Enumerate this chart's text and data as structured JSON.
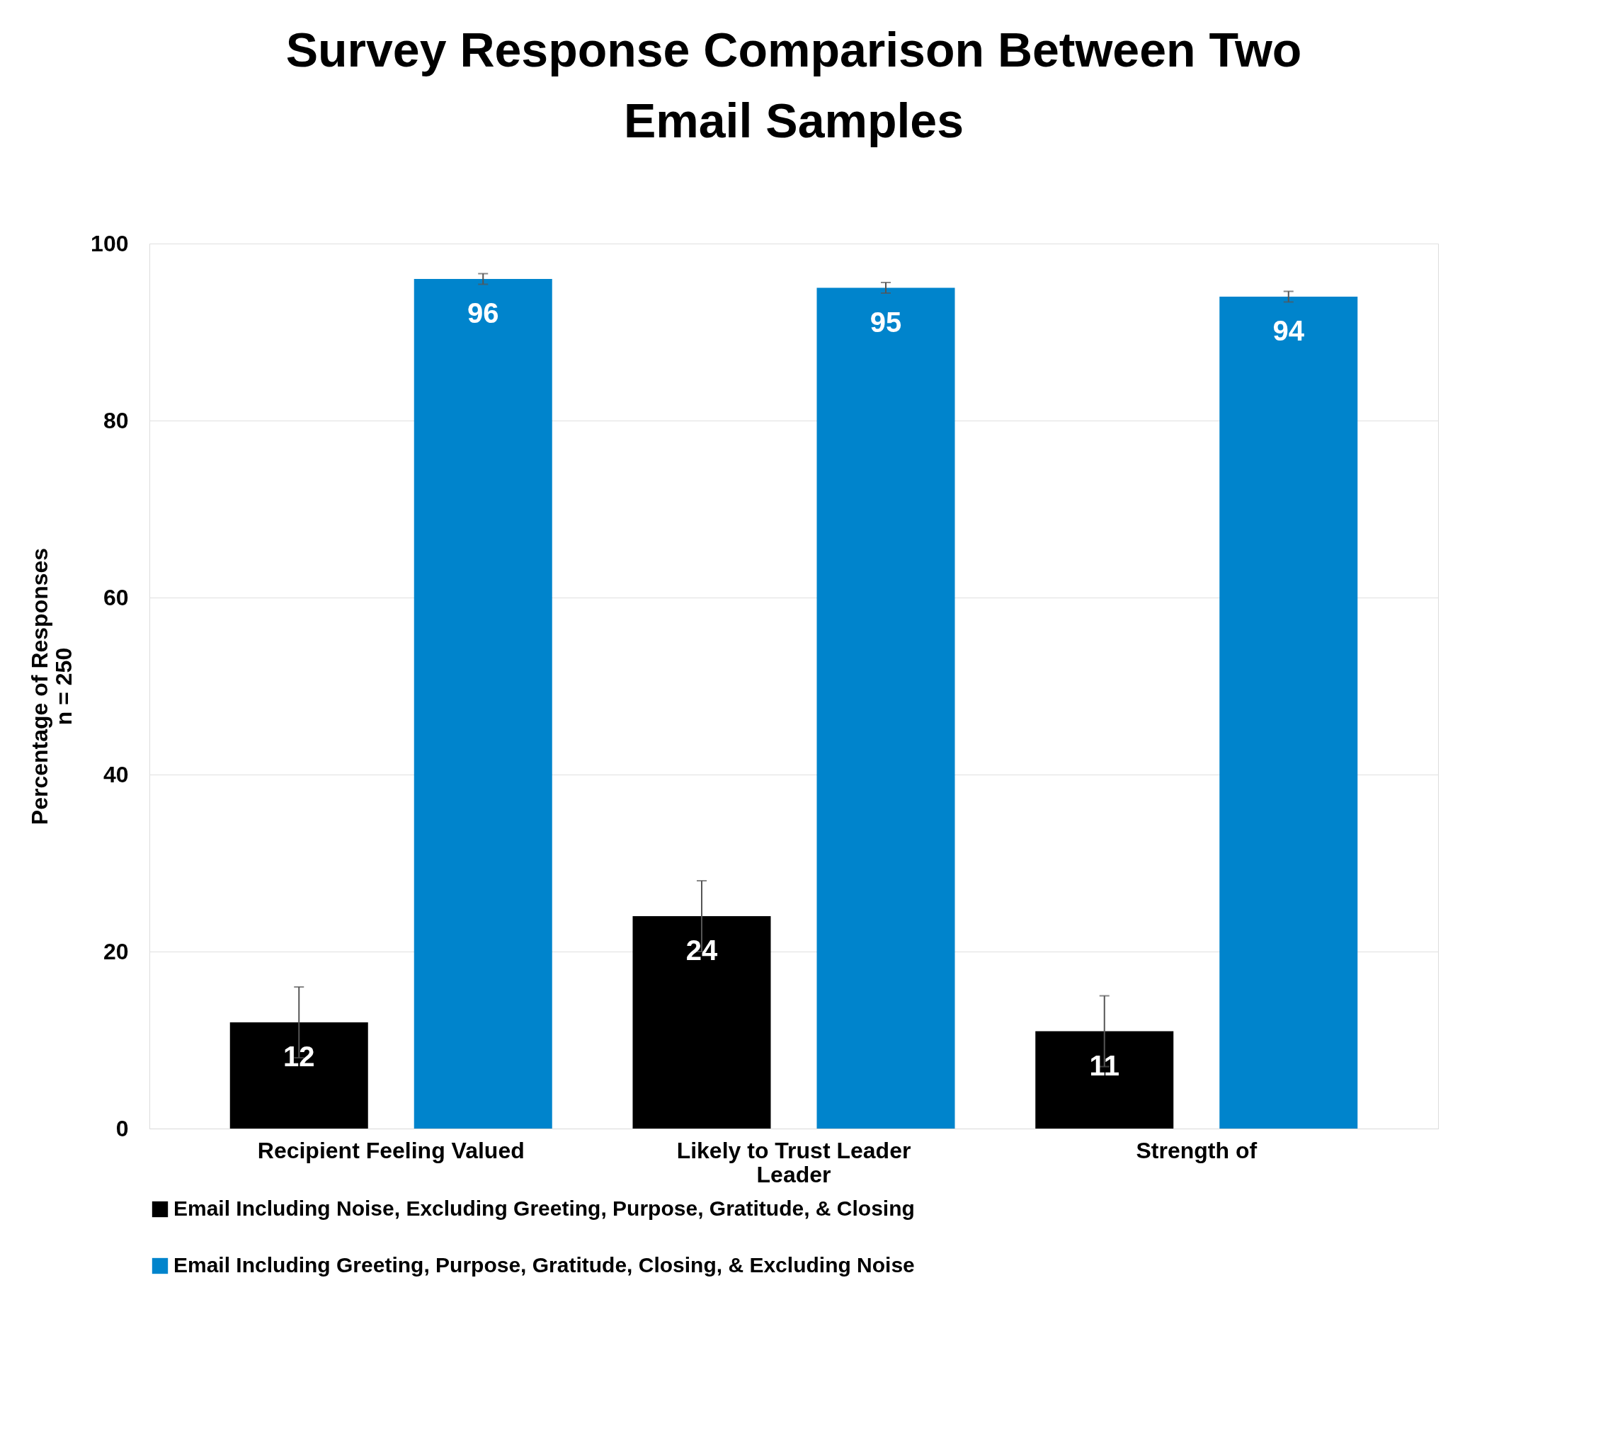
{
  "chart_data": {
    "type": "bar",
    "title": "Survey Response Comparison Between Two Email Samples",
    "ylabel": "Percentage of Responses\nn = 250",
    "categories": [
      "Recipient Feeling Valued",
      "Likely to Trust Leader\nLeader",
      "Strength of"
    ],
    "series": [
      {
        "name": "Email Including Noise, Excluding Greeting, Purpose, Gratitude, & Closing",
        "color": "#000000",
        "values": [
          12,
          24,
          11
        ],
        "errors": [
          4,
          4,
          4
        ]
      },
      {
        "name": "Email Including Greeting, Purpose, Gratitude, Closing, & Excluding Noise",
        "color": "#0084cc",
        "values": [
          96,
          95,
          94
        ],
        "errors": [
          0.6,
          0.6,
          0.6
        ]
      }
    ],
    "ylim": [
      0,
      100
    ],
    "yticks": [
      0,
      20,
      40,
      60,
      80,
      100
    ],
    "grid": "y",
    "legend": "bottom",
    "data_labels": true
  }
}
